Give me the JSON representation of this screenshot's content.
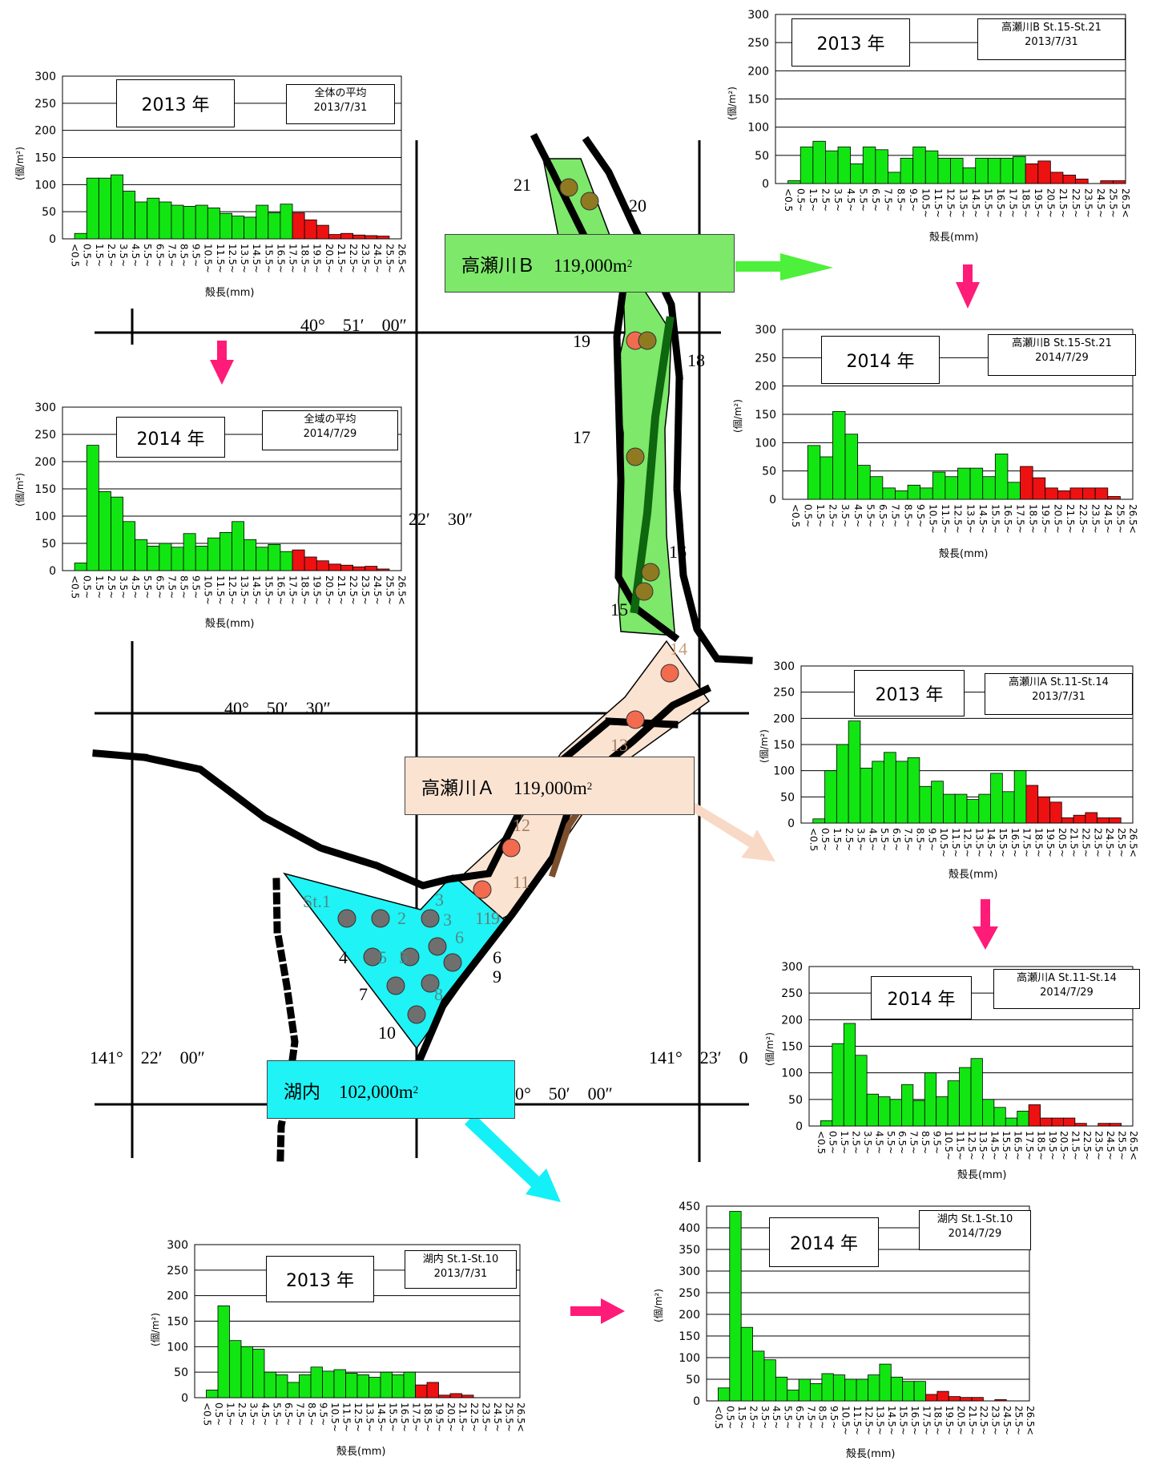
{
  "map": {
    "coords": {
      "lat_top": "40°　51′　00″",
      "lat_mid": "40°　50′　30″",
      "lat_bot": "40°　50′　00″",
      "lon_left": "141°　22′　00″",
      "lon_right": "141°　23′　0",
      "lon_mid": "22′　30″"
    },
    "zones": [
      {
        "name": "高瀬川Ｂ　119,000m",
        "sup": "2",
        "color": "#7de86a"
      },
      {
        "name": "高瀬川Ａ　119,000m",
        "sup": "2",
        "color": "#fbe3d2"
      },
      {
        "name": "湖内　102,000m",
        "sup": "2",
        "color": "#1ff3f5"
      }
    ],
    "station_labels": [
      "21",
      "20",
      "19",
      "18",
      "17",
      "16",
      "15",
      "14",
      "13",
      "12",
      "11",
      "11",
      "9",
      "St.1",
      "2",
      "3",
      "3",
      "4",
      "5",
      "5",
      "6",
      "6",
      "7",
      "8",
      "9",
      "10"
    ],
    "colors": {
      "zone_b": "#7de86a",
      "zone_a": "#fbe3d2",
      "lake": "#1ff3f5",
      "arrow_pink": "#ff1b78",
      "arrow_green": "#4df03a",
      "arrow_cyan": "#14f0f7",
      "arrow_peach": "#f8d9c6",
      "bar_green": "#12e612",
      "bar_red": "#ee1111",
      "dot_red": "#f26b4f",
      "dot_olive": "#8f7a22",
      "dot_gray": "#6f6f6f"
    }
  },
  "chart_data": [
    {
      "id": "all2013",
      "type": "bar",
      "year_label": "2013 年",
      "info_line1": "全体の平均",
      "info_line2": "2013/7/31",
      "ylabel": "(個/m²)",
      "xlabel": "殻長(mm)",
      "ylim": [
        0,
        300
      ],
      "yticks": [
        "0",
        "50",
        "100",
        "150",
        "200",
        "250",
        "300"
      ],
      "categories": [
        "<0.5",
        "0.5~",
        "1.5~",
        "2.5~",
        "3.5~",
        "4.5~",
        "5.5~",
        "6.5~",
        "7.5~",
        "8.5~",
        "9.5~",
        "10.5~",
        "11.5~",
        "12.5~",
        "13.5~",
        "14.5~",
        "15.5~",
        "16.5~",
        "17.5~",
        "18.5~",
        "19.5~",
        "20.5~",
        "21.5~",
        "22.5~",
        "23.5~",
        "24.5~",
        "25.5~",
        "26.5<"
      ],
      "values": [
        0,
        10,
        112,
        112,
        118,
        88,
        68,
        75,
        68,
        62,
        60,
        62,
        57,
        47,
        42,
        40,
        62,
        48,
        64,
        48,
        35,
        25,
        8,
        10,
        7,
        6,
        5,
        0
      ],
      "highlight_from": 19
    },
    {
      "id": "all2014",
      "type": "bar",
      "year_label": "2014 年",
      "info_line1": "全域の平均",
      "info_line2": "2014/7/29",
      "ylabel": "(個/m²)",
      "xlabel": "殻長(mm)",
      "ylim": [
        0,
        300
      ],
      "yticks": [
        "0",
        "50",
        "100",
        "150",
        "200",
        "250",
        "300"
      ],
      "categories": [
        "<0.5",
        "0.5~",
        "1.5~",
        "2.5~",
        "3.5~",
        "4.5~",
        "5.5~",
        "6.5~",
        "7.5~",
        "8.5~",
        "9.5~",
        "10.5~",
        "11.5~",
        "12.5~",
        "13.5~",
        "14.5~",
        "15.5~",
        "16.5~",
        "17.5~",
        "18.5~",
        "19.5~",
        "20.5~",
        "21.5~",
        "22.5~",
        "23.5~",
        "24.5~",
        "25.5~",
        "26.5<"
      ],
      "values": [
        0,
        14,
        230,
        145,
        135,
        90,
        57,
        45,
        50,
        43,
        68,
        45,
        60,
        70,
        90,
        57,
        43,
        48,
        35,
        38,
        25,
        18,
        12,
        10,
        7,
        8,
        3,
        0
      ],
      "highlight_from": 19
    },
    {
      "id": "b2013",
      "type": "bar",
      "year_label": "2013 年",
      "info_line1": "高瀬川B St.15-St.21",
      "info_line2": "2013/7/31",
      "ylabel": "(個/m²)",
      "xlabel": "殻長(mm)",
      "ylim": [
        0,
        300
      ],
      "yticks": [
        "0",
        "50",
        "100",
        "150",
        "200",
        "250",
        "300"
      ],
      "categories": [
        "<0.5",
        "0.5~",
        "1.5~",
        "2.5~",
        "3.5~",
        "4.5~",
        "5.5~",
        "6.5~",
        "7.5~",
        "8.5~",
        "9.5~",
        "10.5~",
        "11.5~",
        "12.5~",
        "13.5~",
        "14.5~",
        "15.5~",
        "16.5~",
        "17.5~",
        "18.5~",
        "19.5~",
        "20.5~",
        "21.5~",
        "22.5~",
        "23.5~",
        "24.5~",
        "25.5~",
        "26.5<"
      ],
      "values": [
        0,
        5,
        65,
        75,
        58,
        65,
        35,
        65,
        60,
        20,
        45,
        65,
        58,
        45,
        45,
        28,
        45,
        45,
        45,
        48,
        35,
        40,
        20,
        15,
        8,
        0,
        5,
        5
      ],
      "highlight_from": 20
    },
    {
      "id": "b2014",
      "type": "bar",
      "year_label": "2014 年",
      "info_line1": "高瀬川B St.15-St.21",
      "info_line2": "2014/7/29",
      "ylabel": "(個/m²)",
      "xlabel": "殻長(mm)",
      "ylim": [
        0,
        300
      ],
      "yticks": [
        "0",
        "50",
        "100",
        "150",
        "200",
        "250",
        "300"
      ],
      "categories": [
        "<0.5",
        "0.5~",
        "1.5~",
        "2.5~",
        "3.5~",
        "4.5~",
        "5.5~",
        "6.5~",
        "7.5~",
        "8.5~",
        "9.5~",
        "10.5~",
        "11.5~",
        "12.5~",
        "13.5~",
        "14.5~",
        "15.5~",
        "16.5~",
        "17.5~",
        "18.5~",
        "19.5~",
        "20.5~",
        "21.5~",
        "22.5~",
        "23.5~",
        "24.5~",
        "25.5~",
        "26.5<"
      ],
      "values": [
        0,
        0,
        95,
        75,
        155,
        115,
        60,
        40,
        20,
        15,
        25,
        20,
        48,
        40,
        55,
        55,
        40,
        80,
        30,
        58,
        38,
        20,
        15,
        20,
        20,
        20,
        5,
        0
      ],
      "highlight_from": 19
    },
    {
      "id": "a2013",
      "type": "bar",
      "year_label": "2013 年",
      "info_line1": "高瀬川A St.11-St.14",
      "info_line2": "2013/7/31",
      "ylabel": "(個/m²)",
      "xlabel": "殻長(mm)",
      "ylim": [
        0,
        300
      ],
      "yticks": [
        "0",
        "50",
        "100",
        "150",
        "200",
        "250",
        "300"
      ],
      "categories": [
        "<0.5",
        "0.5~",
        "1.5~",
        "2.5~",
        "3.5~",
        "4.5~",
        "5.5~",
        "6.5~",
        "7.5~",
        "8.5~",
        "9.5~",
        "10.5~",
        "11.5~",
        "12.5~",
        "13.5~",
        "14.5~",
        "15.5~",
        "16.5~",
        "17.5~",
        "18.5~",
        "19.5~",
        "20.5~",
        "21.5~",
        "22.5~",
        "23.5~",
        "24.5~",
        "25.5~",
        "26.5<"
      ],
      "values": [
        0,
        8,
        100,
        150,
        195,
        105,
        118,
        135,
        118,
        125,
        70,
        80,
        55,
        55,
        45,
        55,
        95,
        60,
        100,
        72,
        50,
        40,
        10,
        15,
        20,
        10,
        10,
        0
      ],
      "highlight_from": 19
    },
    {
      "id": "a2014",
      "type": "bar",
      "year_label": "2014 年",
      "info_line1": "高瀬川A St.11-St.14",
      "info_line2": "2014/7/29",
      "ylabel": "(個/m²)",
      "xlabel": "殻長(mm)",
      "ylim": [
        0,
        300
      ],
      "yticks": [
        "0",
        "50",
        "100",
        "150",
        "200",
        "250",
        "300"
      ],
      "categories": [
        "<0.5",
        "0.5~",
        "1.5~",
        "2.5~",
        "3.5~",
        "4.5~",
        "5.5~",
        "6.5~",
        "7.5~",
        "8.5~",
        "9.5~",
        "10.5~",
        "11.5~",
        "12.5~",
        "13.5~",
        "14.5~",
        "15.5~",
        "16.5~",
        "17.5~",
        "18.5~",
        "19.5~",
        "20.5~",
        "21.5~",
        "22.5~",
        "23.5~",
        "24.5~",
        "25.5~",
        "26.5<"
      ],
      "values": [
        0,
        10,
        155,
        193,
        133,
        60,
        55,
        50,
        78,
        48,
        100,
        55,
        85,
        110,
        127,
        50,
        35,
        15,
        28,
        40,
        15,
        15,
        15,
        5,
        0,
        5,
        5,
        0
      ],
      "highlight_from": 19
    },
    {
      "id": "lake2013",
      "type": "bar",
      "year_label": "2013 年",
      "info_line1": "湖内 St.1-St.10",
      "info_line2": "2013/7/31",
      "ylabel": "(個/m²)",
      "xlabel": "殻長(mm)",
      "ylim": [
        0,
        300
      ],
      "yticks": [
        "0",
        "50",
        "100",
        "150",
        "200",
        "250",
        "300"
      ],
      "categories": [
        "<0.5",
        "0.5~",
        "1.5~",
        "2.5~",
        "3.5~",
        "4.5~",
        "5.5~",
        "6.5~",
        "7.5~",
        "8.5~",
        "9.5~",
        "10.5~",
        "11.5~",
        "12.5~",
        "13.5~",
        "14.5~",
        "15.5~",
        "16.5~",
        "17.5~",
        "18.5~",
        "19.5~",
        "20.5~",
        "21.5~",
        "22.5~",
        "23.5~",
        "24.5~",
        "25.5~",
        "26.5<"
      ],
      "values": [
        0,
        15,
        180,
        112,
        100,
        95,
        50,
        45,
        30,
        45,
        60,
        52,
        55,
        48,
        45,
        40,
        50,
        45,
        50,
        25,
        30,
        5,
        8,
        5,
        0,
        0,
        0,
        0
      ],
      "highlight_from": 19
    },
    {
      "id": "lake2014",
      "type": "bar",
      "year_label": "2014 年",
      "info_line1": "湖内 St.1-St.10",
      "info_line2": "2014/7/29",
      "ylabel": "(個/m²)",
      "xlabel": "殻長(mm)",
      "ylim": [
        0,
        450
      ],
      "yticks": [
        "0",
        "50",
        "100",
        "150",
        "200",
        "250",
        "300",
        "350",
        "400",
        "450"
      ],
      "categories": [
        "<0.5",
        "0.5~",
        "1.5~",
        "2.5~",
        "3.5~",
        "4.5~",
        "5.5~",
        "6.5~",
        "7.5~",
        "8.5~",
        "9.5~",
        "10.5~",
        "11.5~",
        "12.5~",
        "13.5~",
        "14.5~",
        "15.5~",
        "16.5~",
        "17.5~",
        "18.5~",
        "19.5~",
        "20.5~",
        "21.5~",
        "22.5~",
        "23.5~",
        "24.5~",
        "25.5~",
        "26.5<"
      ],
      "values": [
        0,
        30,
        438,
        170,
        115,
        95,
        55,
        25,
        50,
        40,
        63,
        60,
        50,
        50,
        60,
        85,
        55,
        45,
        45,
        15,
        22,
        10,
        8,
        8,
        0,
        3,
        0,
        0
      ],
      "highlight_from": 19
    }
  ]
}
